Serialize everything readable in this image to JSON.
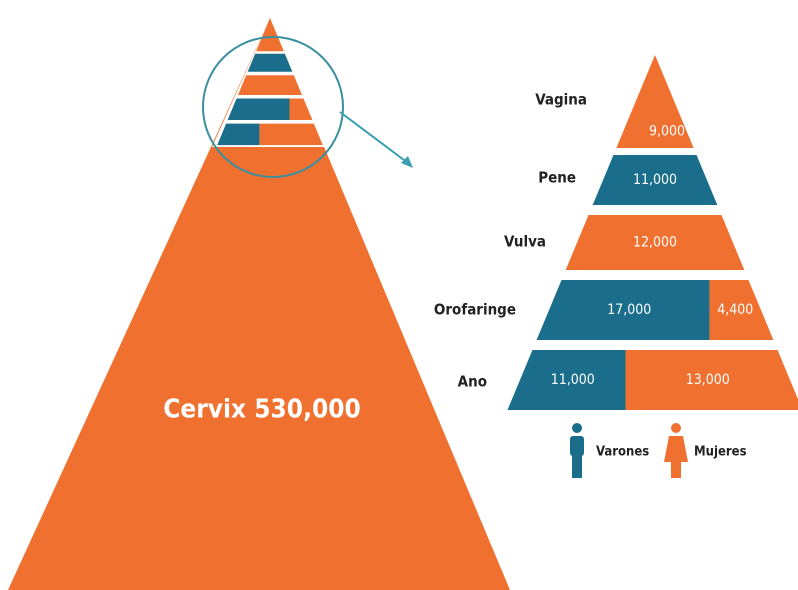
{
  "main": {
    "label": "Cervix 530,000"
  },
  "levels": [
    {
      "label": "Vagina",
      "segments": {
        "mujeres": "9,000"
      }
    },
    {
      "label": "Pene",
      "segments": {
        "varones": "11,000"
      }
    },
    {
      "label": "Vulva",
      "segments": {
        "mujeres": "12,000"
      }
    },
    {
      "label": "Orofaringe",
      "segments": {
        "varones": "17,000",
        "mujeres": "4,400"
      }
    },
    {
      "label": "Ano",
      "segments": {
        "varones": "11,000",
        "mujeres": "13,000"
      }
    }
  ],
  "legend": {
    "varones": "Varones",
    "mujeres": "Mujeres"
  }
}
